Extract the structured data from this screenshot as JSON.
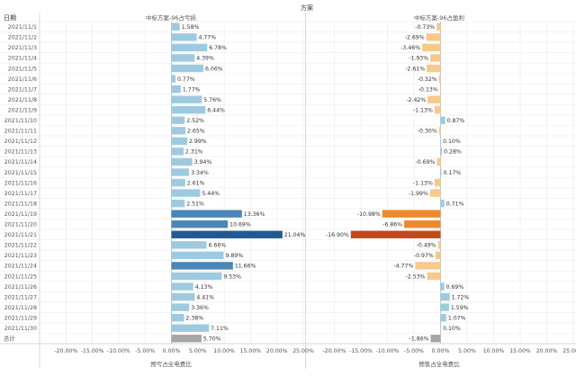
{
  "chart_data": {
    "type": "bar",
    "title": "方案",
    "row_header": "日期",
    "categories": [
      "2021/11/1",
      "2021/11/2",
      "2021/11/3",
      "2021/11/4",
      "2021/11/5",
      "2021/11/6",
      "2021/11/7",
      "2021/11/8",
      "2021/11/9",
      "2021/11/10",
      "2021/11/11",
      "2021/11/12",
      "2021/11/13",
      "2021/11/14",
      "2021/11/15",
      "2021/11/16",
      "2021/11/17",
      "2021/11/18",
      "2021/11/19",
      "2021/11/20",
      "2021/11/21",
      "2021/11/22",
      "2021/11/23",
      "2021/11/24",
      "2021/11/25",
      "2021/11/26",
      "2021/11/27",
      "2021/11/28",
      "2021/11/29",
      "2021/11/30"
    ],
    "total_label": "总计",
    "series": [
      {
        "name": "中标方案-96占亏损",
        "xlabel": "预亏占全电费比",
        "values": [
          1.58,
          4.77,
          6.78,
          4.39,
          6.06,
          0.77,
          1.77,
          5.76,
          6.44,
          2.52,
          2.65,
          2.99,
          2.31,
          3.94,
          3.34,
          2.61,
          5.44,
          2.51,
          13.36,
          10.69,
          21.04,
          6.66,
          9.89,
          11.66,
          9.53,
          4.13,
          4.41,
          3.36,
          2.38,
          7.11
        ],
        "value_labels": [
          "1.58%",
          "4.77%",
          "6.78%",
          "4.39%",
          "6.06%",
          "0.77%",
          "1.77%",
          "5.76%",
          "6.44%",
          "2.52%",
          "2.65%",
          "2.99%",
          "2.31%",
          "3.94%",
          "3.34%",
          "2.61%",
          "5.44%",
          "2.51%",
          "13.36%",
          "10.69%",
          "21.04%",
          "6.66%",
          "9.89%",
          "11.66%",
          "9.53%",
          "4.13%",
          "4.41%",
          "3.36%",
          "2.38%",
          "7.11%"
        ],
        "total": 5.7,
        "total_label": "5.70%"
      },
      {
        "name": "中标方案-96占盈利",
        "xlabel": "预售占全电费比",
        "values": [
          -0.73,
          -2.69,
          -3.46,
          -1.93,
          -2.61,
          -0.32,
          -0.13,
          -2.42,
          -1.13,
          0.87,
          -0.3,
          0.1,
          0.28,
          -0.69,
          0.17,
          -1.13,
          -1.99,
          0.71,
          -10.98,
          -6.86,
          -16.9,
          -0.49,
          -0.97,
          -4.77,
          -2.53,
          0.69,
          1.72,
          1.59,
          1.07,
          0.1
        ],
        "value_labels": [
          "-0.73%",
          "-2.69%",
          "-3.46%",
          "-1.93%",
          "-2.61%",
          "-0.32%",
          "-0.13%",
          "-2.42%",
          "-1.13%",
          "0.87%",
          "-0.30%",
          "0.10%",
          "0.28%",
          "-0.69%",
          "0.17%",
          "-1.13%",
          "-1.99%",
          "0.71%",
          "-10.98%",
          "-6.86%",
          "-16.90%",
          "-0.49%",
          "-0.97%",
          "-4.77%",
          "-2.53%",
          "0.69%",
          "1.72%",
          "1.59%",
          "1.07%",
          "0.10%"
        ],
        "total": -1.86,
        "total_label": "-1.86%"
      }
    ],
    "xlim": [
      -25,
      25
    ],
    "ticks": [
      -20,
      -15,
      -10,
      -5,
      0,
      5,
      10,
      15,
      20,
      25
    ],
    "tick_labels": [
      "-20.00%",
      "-15.00%",
      "-10.00%",
      "-5.00%",
      "0.00%",
      "5.00%",
      "10.00%",
      "15.00%",
      "20.00%",
      "25.00%"
    ],
    "colors": {
      "positive_light": "#9ecae1",
      "positive_mid": "#4a86b8",
      "positive_dark": "#1f5a96",
      "negative_light": "#f7c98b",
      "negative_mid": "#ee8a2e",
      "negative_dark": "#c2481a",
      "total": "#a6a6a6",
      "grid": "#e6e6e6",
      "divider": "#d0d0d0",
      "text": "#555555"
    }
  }
}
